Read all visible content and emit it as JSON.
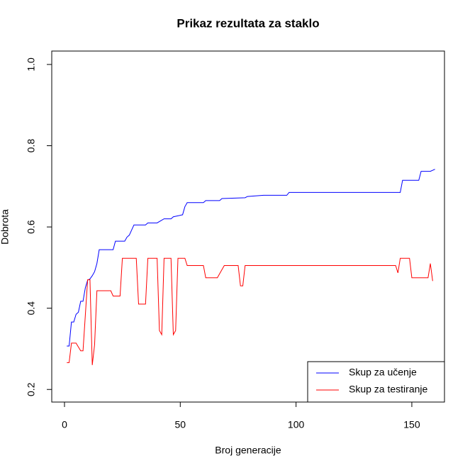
{
  "chart_data": {
    "type": "line",
    "title": "Prikaz rezultata za staklo",
    "xlabel": "Broj generacije",
    "ylabel": "Dobrota",
    "xlim": [
      -5.5,
      164.1
    ],
    "ylim": [
      0.169,
      1.033
    ],
    "xticks": [
      0,
      50,
      100,
      150
    ],
    "yticks": [
      {
        "value": 0.2,
        "label": "0.2"
      },
      {
        "value": 0.4,
        "label": "0.4"
      },
      {
        "value": 0.6,
        "label": "0.6"
      },
      {
        "value": 0.8,
        "label": "0.8"
      },
      {
        "value": 1.0,
        "label": "1.0"
      }
    ],
    "legend": "bottom-right",
    "series": [
      {
        "name": "Skup za učenje",
        "color": "#0000ff",
        "x": [
          1,
          2,
          3,
          4,
          5,
          6,
          7,
          8,
          9,
          10,
          11,
          12,
          13,
          14,
          15,
          21,
          22,
          26,
          27,
          28,
          30,
          35,
          36,
          40,
          43,
          46,
          47,
          51,
          52,
          53,
          60,
          61,
          67,
          68,
          78,
          79,
          86,
          96,
          97,
          145,
          146,
          153,
          154,
          158,
          160
        ],
        "values": [
          0.307,
          0.307,
          0.366,
          0.366,
          0.385,
          0.39,
          0.417,
          0.417,
          0.45,
          0.469,
          0.472,
          0.48,
          0.49,
          0.51,
          0.544,
          0.544,
          0.565,
          0.565,
          0.575,
          0.58,
          0.605,
          0.605,
          0.61,
          0.61,
          0.62,
          0.62,
          0.625,
          0.63,
          0.65,
          0.66,
          0.66,
          0.665,
          0.665,
          0.67,
          0.672,
          0.675,
          0.678,
          0.678,
          0.685,
          0.685,
          0.715,
          0.715,
          0.737,
          0.737,
          0.742
        ]
      },
      {
        "name": "Skup za testiranje",
        "color": "#ff0000",
        "x": [
          1,
          2,
          3,
          5,
          7,
          8,
          10,
          11,
          12,
          13,
          14,
          20,
          21,
          24,
          25,
          31,
          32,
          35,
          36,
          40,
          41,
          42,
          43,
          46,
          47,
          48,
          49,
          52,
          53,
          60,
          61,
          66,
          69,
          75,
          76,
          77,
          78,
          143,
          144,
          145,
          149,
          150,
          157,
          158,
          159
        ],
        "values": [
          0.266,
          0.266,
          0.314,
          0.314,
          0.295,
          0.295,
          0.47,
          0.47,
          0.26,
          0.31,
          0.443,
          0.443,
          0.43,
          0.43,
          0.523,
          0.523,
          0.41,
          0.41,
          0.523,
          0.523,
          0.345,
          0.335,
          0.523,
          0.523,
          0.335,
          0.345,
          0.523,
          0.523,
          0.505,
          0.505,
          0.475,
          0.475,
          0.505,
          0.505,
          0.455,
          0.455,
          0.505,
          0.505,
          0.487,
          0.523,
          0.523,
          0.475,
          0.475,
          0.51,
          0.467
        ]
      }
    ]
  }
}
